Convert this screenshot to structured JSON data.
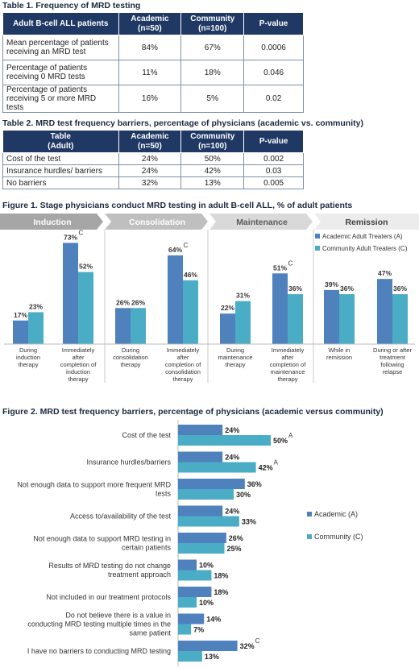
{
  "table1": {
    "caption": "Table 1. Frequency of MRD testing",
    "headers": [
      "Adult B-cell ALL patients",
      "Academic\n(n=50)",
      "Community\n(n=100)",
      "P-value"
    ],
    "rows": [
      [
        "Mean percentage of patients receiving an MRD test",
        "84%",
        "67%",
        "0.0006"
      ],
      [
        "Percentage of patients receiving 0 MRD tests",
        "11%",
        "18%",
        "0.046"
      ],
      [
        "Percentage of patients receiving 5 or more MRD tests",
        "16%",
        "5%",
        "0.02"
      ]
    ]
  },
  "table2": {
    "caption": "Table 2. MRD test frequency barriers, percentage of physicians (academic vs. community)",
    "headers": [
      "Table\n(Adult)",
      "Academic\n(n=50)",
      "Community\n(n=100)",
      "P-value"
    ],
    "rows": [
      [
        "Cost of the test",
        "24%",
        "50%",
        "0.002"
      ],
      [
        "Insurance hurdles/ barriers",
        "24%",
        "42%",
        "0.03"
      ],
      [
        "No barriers",
        "32%",
        "13%",
        "0.005"
      ]
    ]
  },
  "colors": {
    "academic": "#4f81bd",
    "community": "#4bacc6",
    "header": "#1f3864"
  },
  "chart_data": [
    {
      "type": "bar",
      "title": "Figure 1.  Stage physicians conduct MRD testing in adult B-cell ALL, % of adult patients",
      "stages": [
        {
          "label": "Induction",
          "fill": "#a6a6a6",
          "text": "#ffffff"
        },
        {
          "label": "Consolidation",
          "fill": "#bfbfbf",
          "text": "#ffffff"
        },
        {
          "label": "Maintenance",
          "fill": "#d9d9d9",
          "text": "#595959"
        },
        {
          "label": "Remission",
          "fill": "#ececec",
          "text": "#404040"
        }
      ],
      "categories": [
        "During induction therapy",
        "Immediately after completion of induction therapy",
        "During consolidation therapy",
        "Immediately after completion of consolidation therapy",
        "During maintenance therapy",
        "Immediately after completion of maintenance therapy",
        "While in remission",
        "During or after treatment following relapse"
      ],
      "series": [
        {
          "name": "Academic Adult Treaters (A)",
          "values": [
            17,
            73,
            26,
            64,
            22,
            51,
            39,
            47
          ]
        },
        {
          "name": "Community Adult Treaters (C)",
          "values": [
            23,
            52,
            26,
            46,
            31,
            36,
            36,
            36
          ]
        }
      ],
      "annotations": [
        {
          "category": 1,
          "series": 0,
          "text": "C"
        },
        {
          "category": 3,
          "series": 0,
          "text": "C"
        },
        {
          "category": 5,
          "series": 0,
          "text": "C"
        }
      ],
      "ylim": [
        0,
        80
      ],
      "legend": "top-right",
      "grid": false
    },
    {
      "type": "bar",
      "orientation": "horizontal",
      "title": "Figure 2. MRD test frequency barriers, percentage of physicians (academic versus community)",
      "categories": [
        "Cost of the test",
        "Insurance hurdles/barriers",
        "Not enough data to support more frequent MRD tests",
        "Access to/availability of the test",
        "Not enough data to support MRD testing in certain patients",
        "Results of MRD testing do not change treatment approach",
        "Not included in our treatment protocols",
        "Do not believe there is a value in conducting MRD testing multiple times in the same patient",
        "I have no barriers to conducting MRD testing"
      ],
      "series": [
        {
          "name": "Academic (A)",
          "values": [
            24,
            24,
            36,
            24,
            26,
            10,
            18,
            14,
            32
          ]
        },
        {
          "name": "Community (C)",
          "values": [
            50,
            42,
            30,
            33,
            25,
            18,
            10,
            7,
            13
          ]
        }
      ],
      "annotations": [
        {
          "category": 0,
          "series": 1,
          "text": "A"
        },
        {
          "category": 1,
          "series": 1,
          "text": "A"
        },
        {
          "category": 8,
          "series": 0,
          "text": "C"
        }
      ],
      "xlim": [
        0,
        60
      ],
      "legend": "right",
      "grid": false
    }
  ]
}
